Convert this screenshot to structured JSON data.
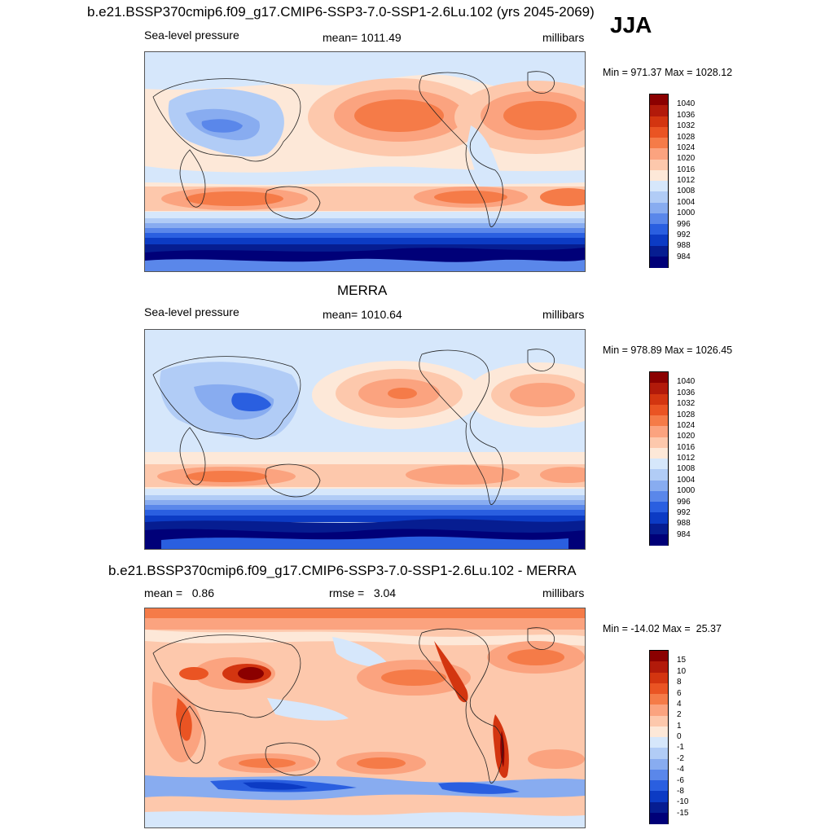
{
  "figure": {
    "title": "b.e21.BSSP370cmip6.f09_g17.CMIP6-SSP3-7.0-SSP1-2.6Lu.102 (yrs 2045-2069)",
    "season": "JJA"
  },
  "panels": [
    {
      "id": "model",
      "title": "",
      "left_label": "Sea-level pressure",
      "center_label": "mean= 1011.49",
      "right_label": "millibars",
      "minmax": "Min = 971.37 Max = 1028.12",
      "colorbar": {
        "labels": [
          "1040",
          "1036",
          "1032",
          "1028",
          "1024",
          "1020",
          "1016",
          "1012",
          "1008",
          "1004",
          "1000",
          "996",
          "992",
          "988",
          "984"
        ],
        "colors": [
          "#8b0000",
          "#b21a0a",
          "#d33510",
          "#ea5423",
          "#f57b48",
          "#fba37f",
          "#fdc8ac",
          "#fde8d8",
          "#d6e7fb",
          "#b1ccf6",
          "#88acf0",
          "#5a87ea",
          "#2a5fe0",
          "#0c3bc4",
          "#061d91",
          "#000078"
        ]
      }
    },
    {
      "id": "obs",
      "title": "MERRA",
      "left_label": "Sea-level pressure",
      "center_label": "mean= 1010.64",
      "right_label": "millibars",
      "minmax": "Min = 978.89 Max = 1026.45",
      "colorbar": {
        "labels": [
          "1040",
          "1036",
          "1032",
          "1028",
          "1024",
          "1020",
          "1016",
          "1012",
          "1008",
          "1004",
          "1000",
          "996",
          "992",
          "988",
          "984"
        ],
        "colors": [
          "#8b0000",
          "#b21a0a",
          "#d33510",
          "#ea5423",
          "#f57b48",
          "#fba37f",
          "#fdc8ac",
          "#fde8d8",
          "#d6e7fb",
          "#b1ccf6",
          "#88acf0",
          "#5a87ea",
          "#2a5fe0",
          "#0c3bc4",
          "#061d91",
          "#000078"
        ]
      }
    },
    {
      "id": "diff",
      "title": "b.e21.BSSP370cmip6.f09_g17.CMIP6-SSP3-7.0-SSP1-2.6Lu.102 - MERRA",
      "left_label": "mean =   0.86",
      "center_label": "rmse =   3.04",
      "right_label": "millibars",
      "minmax": "Min = -14.02 Max =  25.37",
      "colorbar": {
        "labels": [
          "15",
          "10",
          "8",
          "6",
          "4",
          "2",
          "1",
          "0",
          "-1",
          "-2",
          "-4",
          "-6",
          "-8",
          "-10",
          "-15"
        ],
        "colors": [
          "#8b0000",
          "#b21a0a",
          "#d33510",
          "#ea5423",
          "#f57b48",
          "#fba37f",
          "#fdc8ac",
          "#fde8d8",
          "#d6e7fb",
          "#b1ccf6",
          "#88acf0",
          "#5a87ea",
          "#2a5fe0",
          "#0c3bc4",
          "#061d91",
          "#000078"
        ]
      }
    }
  ]
}
